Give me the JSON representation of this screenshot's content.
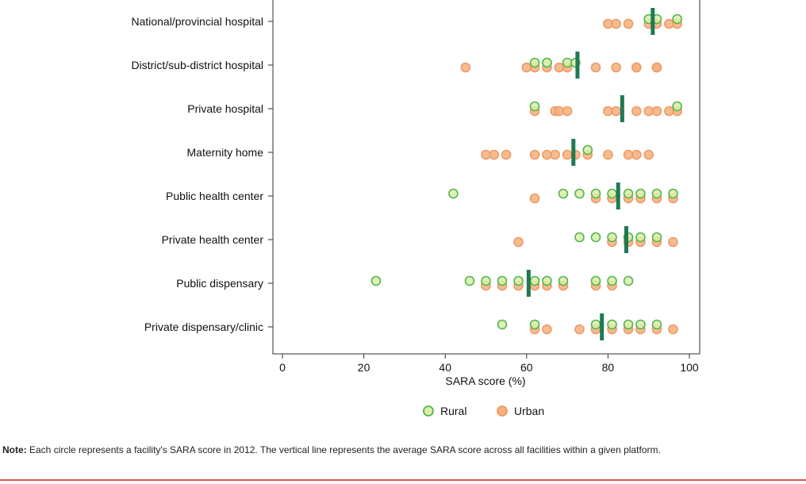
{
  "chart_data": {
    "type": "scatter",
    "xlabel": "SARA score (%)",
    "xlim": [
      -2,
      103
    ],
    "xticks": [
      0,
      20,
      40,
      60,
      80,
      100
    ],
    "categories": [
      "National/provincial hospital",
      "District/sub-district hospital",
      "Private hospital",
      "Maternity home",
      "Public health center",
      "Private health center",
      "Public dispensary",
      "Private dispensary/clinic"
    ],
    "legend": [
      {
        "name": "Rural",
        "fill": "#d9efa8",
        "stroke": "#52b552"
      },
      {
        "name": "Urban",
        "fill": "#f5b07c",
        "stroke": "#ee9a66"
      }
    ],
    "series": [
      {
        "name": "Rural",
        "points": [
          [
            0,
            90
          ],
          [
            0,
            92
          ],
          [
            0,
            97
          ],
          [
            1,
            62
          ],
          [
            1,
            65
          ],
          [
            1,
            65
          ],
          [
            1,
            70
          ],
          [
            1,
            72
          ],
          [
            2,
            62
          ],
          [
            2,
            97
          ],
          [
            3,
            75
          ],
          [
            4,
            42
          ],
          [
            4,
            69
          ],
          [
            4,
            73
          ],
          [
            4,
            77
          ],
          [
            4,
            81
          ],
          [
            4,
            85
          ],
          [
            4,
            88
          ],
          [
            4,
            92
          ],
          [
            4,
            96
          ],
          [
            5,
            73
          ],
          [
            5,
            77
          ],
          [
            5,
            81
          ],
          [
            5,
            85
          ],
          [
            5,
            88
          ],
          [
            5,
            92
          ],
          [
            6,
            23
          ],
          [
            6,
            46
          ],
          [
            6,
            50
          ],
          [
            6,
            54
          ],
          [
            6,
            58
          ],
          [
            6,
            62
          ],
          [
            6,
            65
          ],
          [
            6,
            69
          ],
          [
            6,
            77
          ],
          [
            6,
            81
          ],
          [
            6,
            85
          ],
          [
            7,
            54
          ],
          [
            7,
            62
          ],
          [
            7,
            77
          ],
          [
            7,
            81
          ],
          [
            7,
            85
          ],
          [
            7,
            88
          ],
          [
            7,
            92
          ]
        ]
      },
      {
        "name": "Urban",
        "points": [
          [
            0,
            80
          ],
          [
            0,
            82
          ],
          [
            0,
            85
          ],
          [
            0,
            90
          ],
          [
            0,
            92
          ],
          [
            0,
            95
          ],
          [
            0,
            97
          ],
          [
            1,
            45
          ],
          [
            1,
            60
          ],
          [
            1,
            62
          ],
          [
            1,
            65
          ],
          [
            1,
            68
          ],
          [
            1,
            70
          ],
          [
            1,
            77
          ],
          [
            1,
            82
          ],
          [
            1,
            87
          ],
          [
            1,
            87
          ],
          [
            1,
            92
          ],
          [
            1,
            92
          ],
          [
            2,
            62
          ],
          [
            2,
            67
          ],
          [
            2,
            68
          ],
          [
            2,
            70
          ],
          [
            2,
            80
          ],
          [
            2,
            82
          ],
          [
            2,
            87
          ],
          [
            2,
            90
          ],
          [
            2,
            92
          ],
          [
            2,
            95
          ],
          [
            2,
            97
          ],
          [
            3,
            50
          ],
          [
            3,
            52
          ],
          [
            3,
            55
          ],
          [
            3,
            62
          ],
          [
            3,
            65
          ],
          [
            3,
            67
          ],
          [
            3,
            70
          ],
          [
            3,
            72
          ],
          [
            3,
            75
          ],
          [
            3,
            80
          ],
          [
            3,
            85
          ],
          [
            3,
            87
          ],
          [
            3,
            90
          ],
          [
            4,
            62
          ],
          [
            4,
            77
          ],
          [
            4,
            81
          ],
          [
            4,
            85
          ],
          [
            4,
            88
          ],
          [
            4,
            92
          ],
          [
            4,
            96
          ],
          [
            5,
            58
          ],
          [
            5,
            81
          ],
          [
            5,
            85
          ],
          [
            5,
            88
          ],
          [
            5,
            92
          ],
          [
            5,
            96
          ],
          [
            6,
            50
          ],
          [
            6,
            54
          ],
          [
            6,
            58
          ],
          [
            6,
            62
          ],
          [
            6,
            65
          ],
          [
            6,
            69
          ],
          [
            6,
            77
          ],
          [
            6,
            81
          ],
          [
            7,
            62
          ],
          [
            7,
            65
          ],
          [
            7,
            73
          ],
          [
            7,
            77
          ],
          [
            7,
            81
          ],
          [
            7,
            85
          ],
          [
            7,
            88
          ],
          [
            7,
            92
          ],
          [
            7,
            96
          ]
        ]
      }
    ],
    "averages": [
      91,
      72.5,
      83.5,
      71.5,
      82.5,
      84.5,
      60.5,
      78.5
    ],
    "average_color": "#1f7a52",
    "legend_placement": "bottom-center",
    "grid": false
  },
  "note": {
    "label": "Note:",
    "text": " Each circle represents a facility's SARA score in 2012. The vertical line represents the average SARA score across all facilities within a given platform."
  }
}
